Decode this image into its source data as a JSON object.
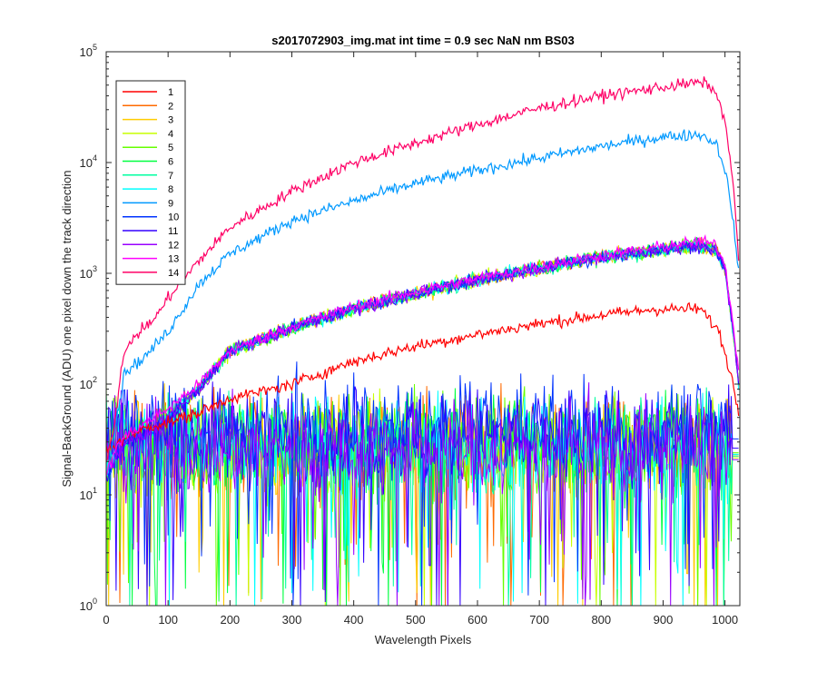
{
  "chart_data": {
    "type": "line",
    "title": "s2017072903_img.mat int time = 0.9 sec  NaN nm BS03",
    "xlabel": "Wavelength Pixels",
    "ylabel": "Signal-BackGround (ADU) one pixel down the track direction",
    "xlim": [
      0,
      1024
    ],
    "ylim": [
      1,
      100000
    ],
    "yscale": "log",
    "x_ticks": [
      "0",
      "100",
      "200",
      "300",
      "400",
      "500",
      "600",
      "700",
      "800",
      "900",
      "1000"
    ],
    "y_ticks": [
      {
        "base": "10",
        "exp": "0"
      },
      {
        "base": "10",
        "exp": "1"
      },
      {
        "base": "10",
        "exp": "2"
      },
      {
        "base": "10",
        "exp": "3"
      },
      {
        "base": "10",
        "exp": "4"
      },
      {
        "base": "10",
        "exp": "5"
      }
    ],
    "legend_position": "top-left",
    "grid": false,
    "series": [
      {
        "name": "1",
        "color": "#ff0000",
        "kind": "signal",
        "profile": [
          [
            0,
            25
          ],
          [
            20,
            30
          ],
          [
            60,
            40
          ],
          [
            100,
            45
          ],
          [
            150,
            55
          ],
          [
            200,
            75
          ],
          [
            250,
            85
          ],
          [
            300,
            100
          ],
          [
            400,
            160
          ],
          [
            500,
            220
          ],
          [
            600,
            280
          ],
          [
            700,
            350
          ],
          [
            800,
            420
          ],
          [
            880,
            470
          ],
          [
            960,
            480
          ],
          [
            990,
            300
          ],
          [
            1010,
            120
          ],
          [
            1024,
            50
          ]
        ]
      },
      {
        "name": "2",
        "color": "#ff6a00",
        "kind": "noise",
        "level": 28
      },
      {
        "name": "3",
        "color": "#ffcc00",
        "kind": "noise",
        "level": 28
      },
      {
        "name": "4",
        "color": "#c8ff00",
        "kind": "noise",
        "level": 27
      },
      {
        "name": "5",
        "color": "#66ff00",
        "kind": "noise",
        "level": 30
      },
      {
        "name": "6",
        "color": "#00ff40",
        "kind": "noise",
        "level": 29
      },
      {
        "name": "7",
        "color": "#00ffa0",
        "kind": "noise",
        "level": 28
      },
      {
        "name": "8",
        "color": "#00ffff",
        "kind": "noise",
        "level": 29
      },
      {
        "name": "9",
        "color": "#0099ff",
        "kind": "signal",
        "profile": [
          [
            0,
            15
          ],
          [
            10,
            30
          ],
          [
            30,
            130
          ],
          [
            60,
            170
          ],
          [
            100,
            300
          ],
          [
            150,
            800
          ],
          [
            200,
            1500
          ],
          [
            300,
            3000
          ],
          [
            400,
            4500
          ],
          [
            500,
            6500
          ],
          [
            600,
            8500
          ],
          [
            700,
            11000
          ],
          [
            800,
            14000
          ],
          [
            900,
            17000
          ],
          [
            960,
            18000
          ],
          [
            985,
            15000
          ],
          [
            1000,
            9000
          ],
          [
            1015,
            2500
          ],
          [
            1024,
            800
          ]
        ]
      },
      {
        "name": "10",
        "color": "#0033ff",
        "kind": "noise",
        "level": 40
      },
      {
        "name": "11",
        "color": "#3300ff",
        "kind": "noise",
        "level": 33
      },
      {
        "name": "12",
        "color": "#9900ff",
        "kind": "noise",
        "level": 26
      },
      {
        "name": "13",
        "color": "#ff00ff",
        "kind": "signal",
        "profile": [
          [
            0,
            15
          ],
          [
            20,
            30
          ],
          [
            50,
            40
          ],
          [
            100,
            60
          ],
          [
            150,
            100
          ],
          [
            200,
            200
          ],
          [
            300,
            330
          ],
          [
            400,
            500
          ],
          [
            500,
            680
          ],
          [
            600,
            900
          ],
          [
            700,
            1150
          ],
          [
            800,
            1450
          ],
          [
            900,
            1750
          ],
          [
            960,
            1950
          ],
          [
            985,
            1800
          ],
          [
            1000,
            1200
          ],
          [
            1015,
            300
          ],
          [
            1024,
            100
          ]
        ]
      },
      {
        "name": "14",
        "color": "#ff0066",
        "kind": "signal",
        "profile": [
          [
            0,
            20
          ],
          [
            15,
            50
          ],
          [
            25,
            150
          ],
          [
            40,
            250
          ],
          [
            80,
            400
          ],
          [
            100,
            600
          ],
          [
            150,
            1300
          ],
          [
            200,
            2600
          ],
          [
            300,
            5500
          ],
          [
            400,
            10000
          ],
          [
            500,
            15000
          ],
          [
            600,
            22000
          ],
          [
            700,
            31000
          ],
          [
            800,
            40000
          ],
          [
            900,
            48000
          ],
          [
            960,
            53000
          ],
          [
            980,
            48000
          ],
          [
            1000,
            25000
          ],
          [
            1015,
            5000
          ],
          [
            1024,
            1000
          ]
        ]
      }
    ],
    "cluster_series_names": [
      "2",
      "3",
      "4",
      "5",
      "6",
      "7",
      "8",
      "10",
      "11",
      "12",
      "13"
    ],
    "cluster_profile": [
      [
        0,
        15
      ],
      [
        30,
        30
      ],
      [
        80,
        40
      ],
      [
        150,
        90
      ],
      [
        200,
        200
      ],
      [
        300,
        320
      ],
      [
        400,
        480
      ],
      [
        500,
        650
      ],
      [
        600,
        880
      ],
      [
        700,
        1100
      ],
      [
        800,
        1400
      ],
      [
        900,
        1650
      ],
      [
        960,
        1800
      ],
      [
        985,
        1650
      ],
      [
        1000,
        1100
      ],
      [
        1015,
        250
      ],
      [
        1024,
        80
      ]
    ]
  }
}
